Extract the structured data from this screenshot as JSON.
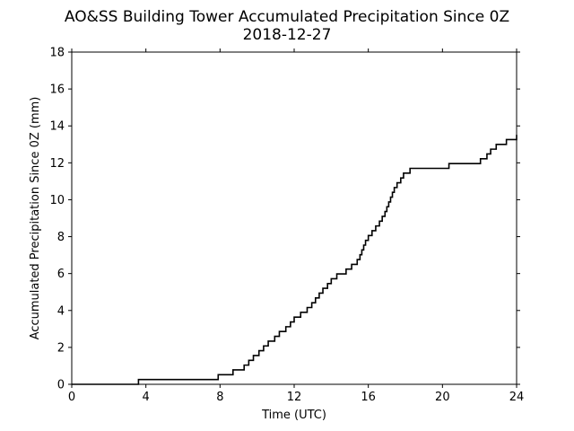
{
  "chart_data": {
    "type": "line",
    "title": "AO&SS Building Tower Accumulated Precipitation Since 0Z",
    "subtitle": "2018-12-27",
    "xlabel": "Time (UTC)",
    "ylabel": "Accumulated Precipitation Since 0Z (mm)",
    "xlim": [
      0,
      24
    ],
    "ylim": [
      0,
      18
    ],
    "x_ticks": [
      0,
      4,
      8,
      12,
      16,
      20,
      24
    ],
    "y_ticks": [
      0,
      2,
      4,
      6,
      8,
      10,
      12,
      14,
      16,
      18
    ],
    "grid": false,
    "line_style": "step",
    "line_color": "#000000",
    "series": [
      {
        "x": [
          0,
          3.6,
          7.9,
          8.7,
          9.3,
          9.55,
          9.8,
          10.1,
          10.35,
          10.6,
          10.95,
          11.2,
          11.55,
          11.8,
          12.0,
          12.35,
          12.7,
          12.95,
          13.15,
          13.35,
          13.55,
          13.8,
          14.0,
          14.3,
          14.8,
          15.1,
          15.4,
          15.55,
          15.65,
          15.75,
          15.85,
          16.0,
          16.2,
          16.4,
          16.6,
          16.75,
          16.9,
          17.0,
          17.1,
          17.2,
          17.3,
          17.4,
          17.55,
          17.75,
          17.9,
          18.25,
          20.35,
          22.05,
          22.4,
          22.6,
          22.9,
          23.45,
          24.0
        ],
        "y": [
          0,
          0.26,
          0.52,
          0.78,
          1.04,
          1.3,
          1.56,
          1.82,
          2.08,
          2.34,
          2.6,
          2.86,
          3.12,
          3.38,
          3.64,
          3.9,
          4.16,
          4.42,
          4.68,
          4.94,
          5.2,
          5.46,
          5.72,
          5.98,
          6.24,
          6.5,
          6.76,
          7.02,
          7.28,
          7.54,
          7.8,
          8.06,
          8.32,
          8.58,
          8.84,
          9.1,
          9.36,
          9.62,
          9.88,
          10.14,
          10.4,
          10.66,
          10.92,
          11.18,
          11.44,
          11.7,
          11.96,
          12.22,
          12.48,
          12.74,
          13.0,
          13.26,
          13.52
        ]
      }
    ]
  }
}
